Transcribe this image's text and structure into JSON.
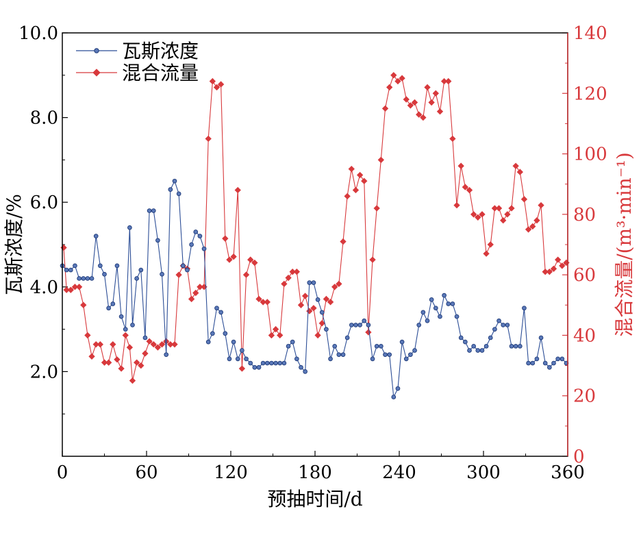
{
  "chart_data": {
    "type": "line",
    "xlabel": "预抽时间/d",
    "ylabel_left": "瓦斯浓度/%",
    "ylabel_right": "混合流量/(m³·min⁻¹)",
    "xlim": [
      0,
      360
    ],
    "ylim_left": [
      0,
      10
    ],
    "ylim_right": [
      0,
      140
    ],
    "x_ticks": [
      "0",
      "60",
      "120",
      "180",
      "240",
      "300",
      "360"
    ],
    "y_left_ticks": [
      "2.0",
      "4.0",
      "6.0",
      "8.0",
      "10.0"
    ],
    "y_left_tick_values": [
      2,
      4,
      6,
      8,
      10
    ],
    "y_right_ticks": [
      "0",
      "20",
      "40",
      "60",
      "80",
      "100",
      "120",
      "140"
    ],
    "y_right_tick_values": [
      0,
      20,
      40,
      60,
      80,
      100,
      120,
      140
    ],
    "legend_position": "top-left",
    "colors": {
      "gas": "#2b4d96",
      "flow": "#d8393c",
      "axis_right": "#d8393c"
    },
    "series": [
      {
        "name": "瓦斯浓度",
        "axis": "left",
        "x": [
          0,
          3,
          6,
          9,
          12,
          15,
          18,
          21,
          24,
          27,
          30,
          33,
          36,
          39,
          42,
          45,
          48,
          50,
          53,
          56,
          59,
          62,
          65,
          68,
          71,
          74,
          77,
          80,
          83,
          86,
          89,
          92,
          95,
          98,
          101,
          104,
          107,
          110,
          113,
          116,
          119,
          122,
          125,
          128,
          131,
          134,
          137,
          140,
          143,
          146,
          149,
          152,
          155,
          158,
          161,
          164,
          167,
          170,
          173,
          176,
          179,
          182,
          185,
          188,
          191,
          194,
          197,
          200,
          203,
          206,
          209,
          212,
          215,
          218,
          221,
          224,
          227,
          230,
          233,
          236,
          239,
          242,
          245,
          248,
          251,
          254,
          257,
          260,
          263,
          266,
          269,
          272,
          275,
          278,
          281,
          284,
          287,
          290,
          293,
          296,
          299,
          302,
          305,
          308,
          311,
          314,
          317,
          320,
          323,
          326,
          329,
          332,
          335,
          338,
          341,
          344,
          347,
          350,
          353,
          356,
          359
        ],
        "values": [
          4.5,
          4.4,
          4.4,
          4.5,
          4.2,
          4.2,
          4.2,
          4.2,
          5.2,
          4.5,
          4.3,
          3.5,
          3.6,
          4.5,
          3.3,
          3.0,
          5.4,
          3.1,
          4.2,
          4.4,
          2.8,
          5.8,
          5.8,
          5.1,
          4.3,
          2.4,
          6.3,
          6.5,
          6.2,
          4.5,
          4.4,
          5.0,
          5.3,
          5.2,
          4.9,
          2.7,
          2.9,
          3.5,
          3.4,
          2.9,
          2.3,
          2.7,
          2.3,
          2.5,
          2.3,
          2.2,
          2.1,
          2.1,
          2.2,
          2.2,
          2.2,
          2.2,
          2.2,
          2.2,
          2.6,
          2.7,
          2.3,
          2.1,
          2.0,
          4.1,
          4.1,
          3.7,
          3.4,
          3.0,
          2.3,
          2.6,
          2.4,
          2.4,
          2.8,
          3.1,
          3.1,
          3.1,
          3.2,
          3.1,
          2.3,
          2.6,
          2.6,
          2.4,
          2.4,
          1.4,
          1.6,
          2.7,
          2.3,
          2.4,
          2.5,
          3.1,
          3.4,
          3.2,
          3.7,
          3.5,
          3.3,
          3.8,
          3.6,
          3.6,
          3.3,
          2.8,
          2.7,
          2.5,
          2.6,
          2.5,
          2.5,
          2.6,
          2.8,
          3.0,
          3.2,
          3.1,
          3.1,
          2.6,
          2.6,
          2.6,
          3.5,
          2.2,
          2.2,
          2.3,
          2.8,
          2.2,
          2.1,
          2.2,
          2.3,
          2.3,
          2.2
        ]
      },
      {
        "name": "混合流量",
        "axis": "right",
        "x": [
          1,
          3,
          6,
          9,
          12,
          15,
          18,
          21,
          24,
          27,
          30,
          33,
          36,
          39,
          42,
          45,
          48,
          50,
          53,
          56,
          59,
          62,
          65,
          68,
          71,
          74,
          77,
          80,
          83,
          86,
          89,
          92,
          95,
          98,
          101,
          104,
          107,
          110,
          113,
          116,
          119,
          122,
          125,
          128,
          131,
          134,
          137,
          140,
          143,
          146,
          149,
          152,
          155,
          158,
          161,
          164,
          167,
          170,
          173,
          176,
          179,
          182,
          185,
          188,
          191,
          194,
          197,
          200,
          203,
          206,
          209,
          212,
          215,
          218,
          221,
          224,
          227,
          230,
          233,
          236,
          239,
          242,
          245,
          248,
          251,
          254,
          257,
          260,
          263,
          266,
          269,
          272,
          275,
          278,
          281,
          284,
          287,
          290,
          293,
          296,
          299,
          302,
          305,
          308,
          311,
          314,
          317,
          320,
          323,
          326,
          329,
          332,
          335,
          338,
          341,
          344,
          347,
          350,
          353,
          356,
          359
        ],
        "values": [
          69,
          55,
          55,
          56,
          56,
          50,
          40,
          33,
          37,
          37,
          31,
          31,
          37,
          32,
          29,
          40,
          36,
          25,
          31,
          30,
          34,
          38,
          37,
          36,
          37,
          38,
          37,
          37,
          60,
          63,
          62,
          52,
          54,
          56,
          56,
          105,
          124,
          122,
          123,
          72,
          65,
          66,
          88,
          29,
          60,
          65,
          64,
          52,
          51,
          51,
          40,
          42,
          40,
          57,
          59,
          61,
          61,
          50,
          53,
          48,
          49,
          40,
          44,
          52,
          51,
          56,
          57,
          71,
          86,
          95,
          88,
          93,
          91,
          41,
          65,
          82,
          98,
          115,
          122,
          126,
          124,
          125,
          118,
          116,
          117,
          113,
          112,
          122,
          117,
          120,
          114,
          124,
          124,
          105,
          83,
          96,
          89,
          88,
          80,
          79,
          80,
          67,
          70,
          82,
          82,
          78,
          80,
          82,
          96,
          94,
          85,
          75,
          76,
          78,
          83,
          61,
          61,
          62,
          65,
          63,
          64
        ]
      }
    ]
  }
}
